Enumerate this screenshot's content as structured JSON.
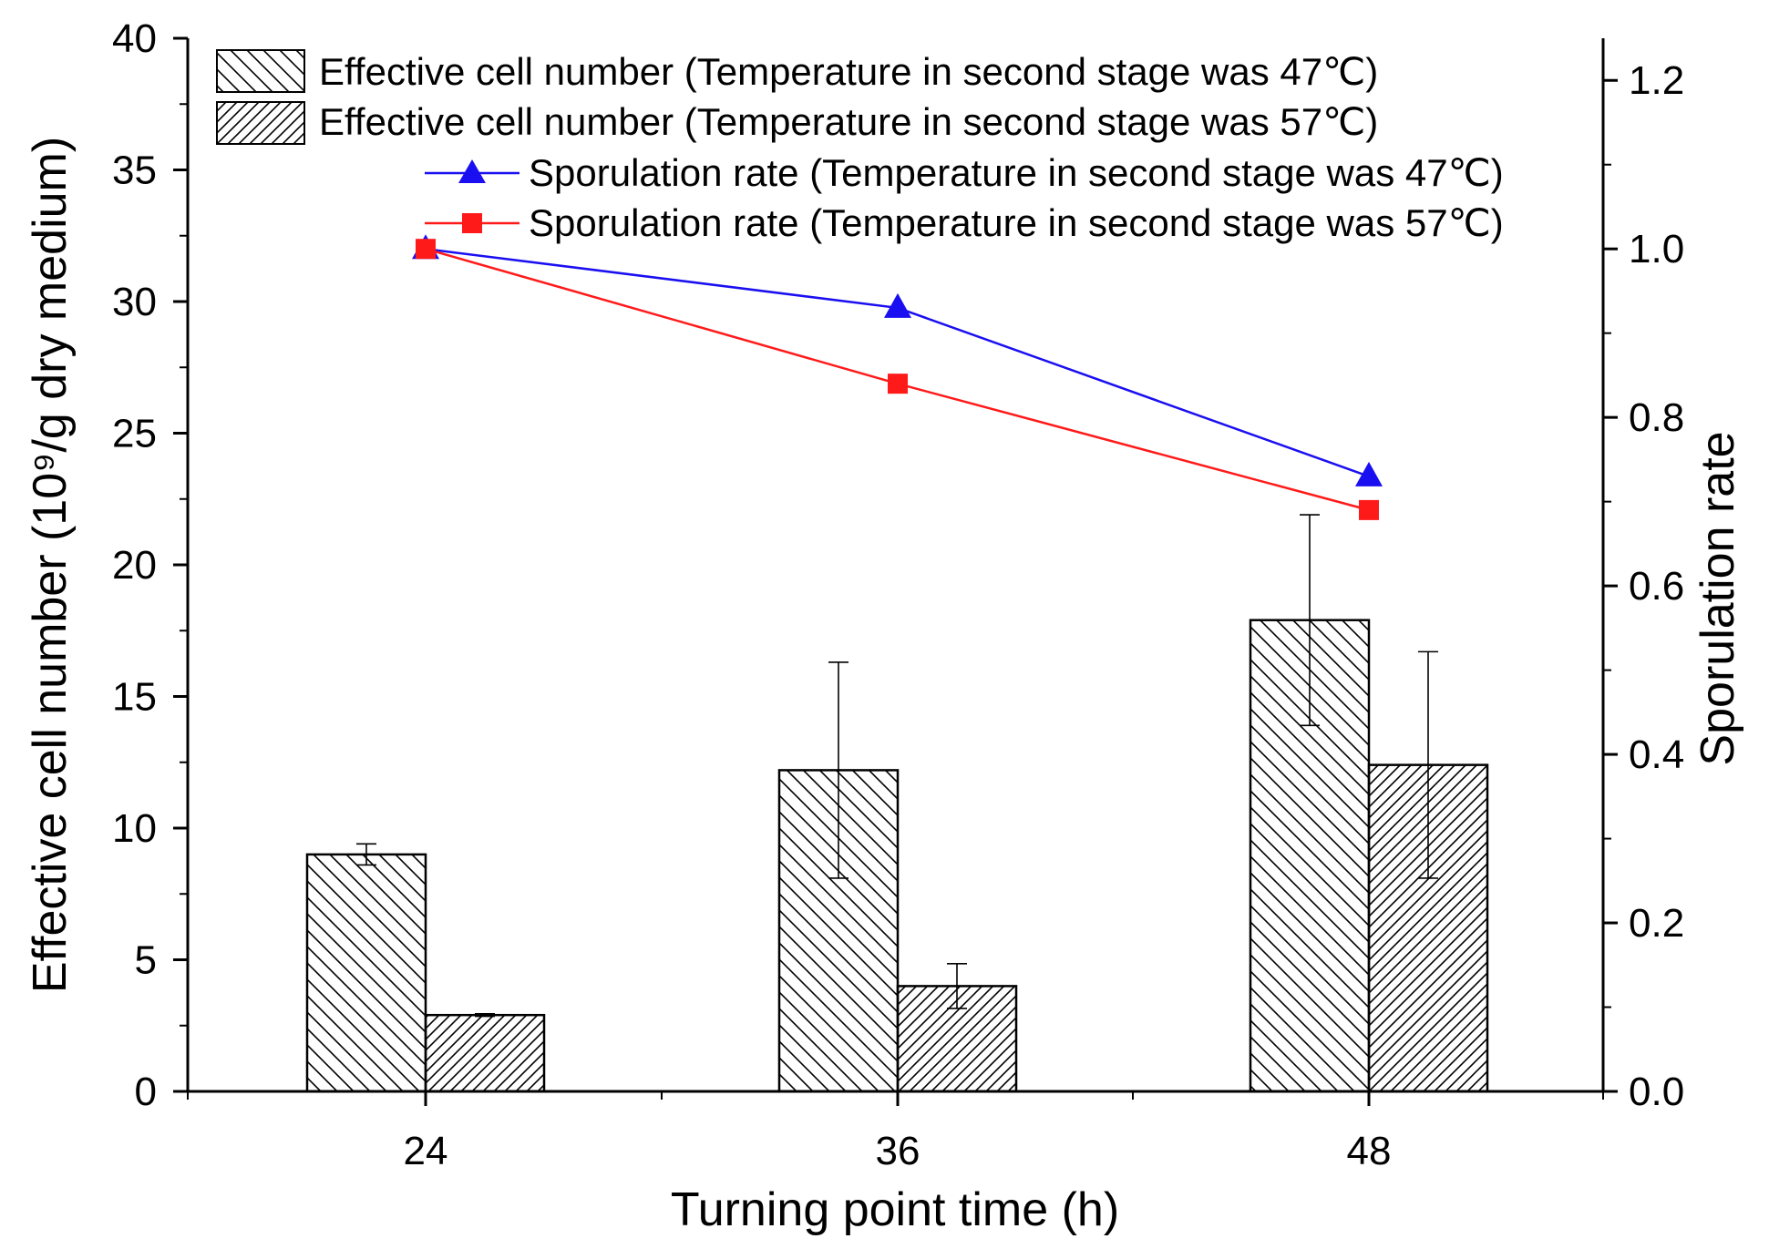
{
  "chart_data": {
    "type": "bar",
    "xlabel": "Turning point time (h)",
    "ylabel": "Effective cell number (10⁹/g dry medium)",
    "y2label": "Sporulation rate",
    "categories": [
      "24",
      "36",
      "48"
    ],
    "ylim": [
      0,
      40
    ],
    "yticks": [
      0,
      5,
      10,
      15,
      20,
      25,
      30,
      35,
      40
    ],
    "y2lim": [
      0,
      1.25
    ],
    "y2ticks": [
      "0.0",
      "0.2",
      "0.4",
      "0.6",
      "0.8",
      "1.0",
      "1.2"
    ],
    "legend_position": "top",
    "bar_series": [
      {
        "name": "Effective cell number (Temperature in second stage was 47℃)",
        "values": [
          9.0,
          12.2,
          17.9
        ],
        "errors": [
          0.4,
          4.1,
          4.0
        ],
        "pattern": "backslash-hatch"
      },
      {
        "name": "Effective cell number (Temperature in second stage was 57℃)",
        "values": [
          2.9,
          4.0,
          12.4
        ],
        "errors": [
          0.05,
          0.85,
          4.3
        ],
        "pattern": "slash-hatch"
      }
    ],
    "line_series": [
      {
        "name": "Sporulation rate (Temperature in second stage was 47℃)",
        "values": [
          1.0,
          0.93,
          0.73
        ],
        "color": "#1a0ff0",
        "marker": "triangle"
      },
      {
        "name": "Sporulation rate (Temperature in second stage was 57℃)",
        "values": [
          1.0,
          0.84,
          0.69
        ],
        "color": "#ff1a1a",
        "marker": "square"
      }
    ]
  }
}
